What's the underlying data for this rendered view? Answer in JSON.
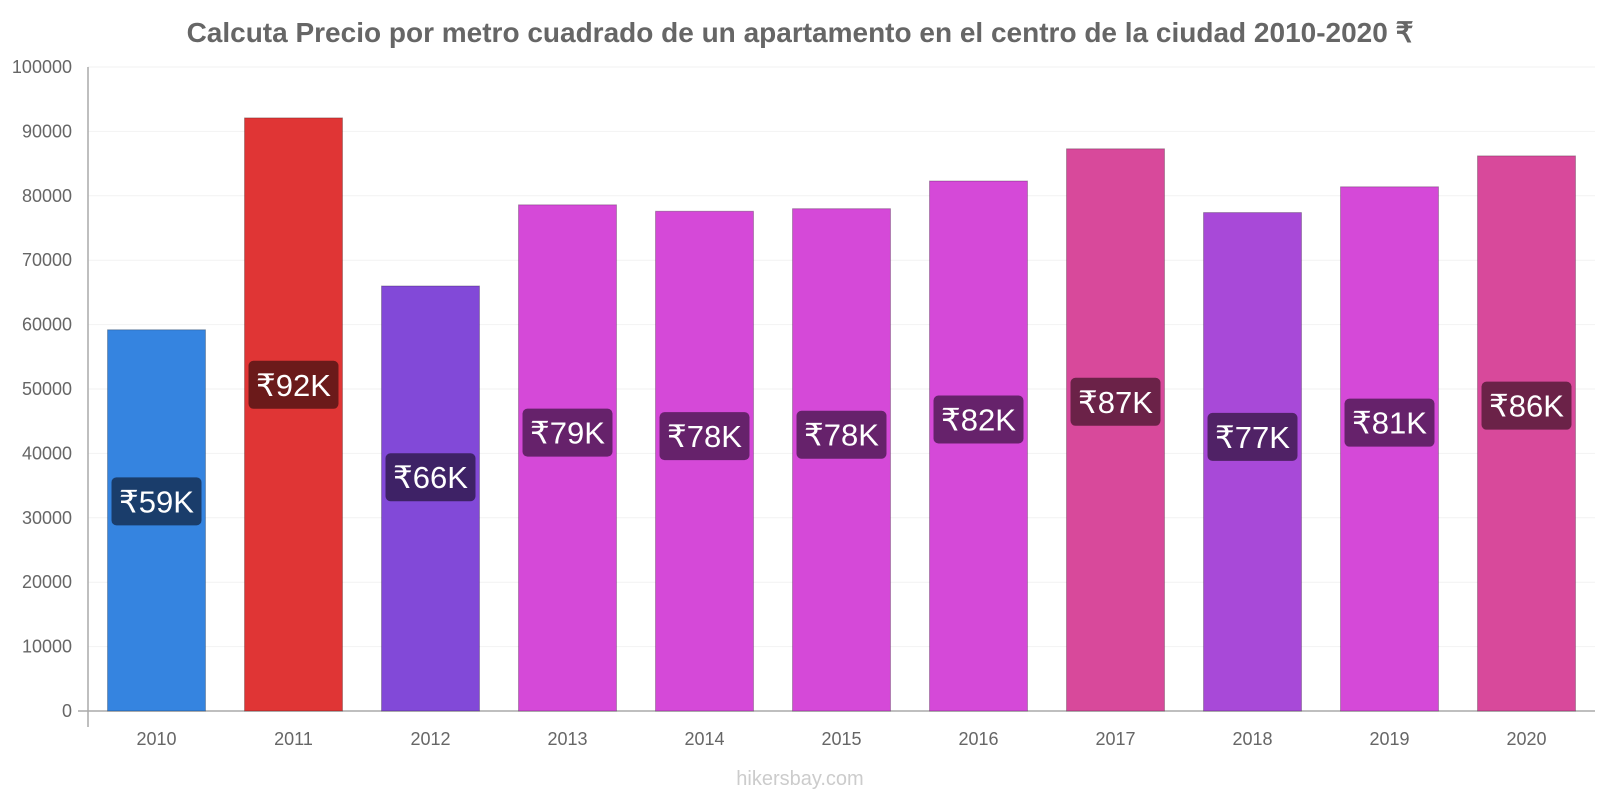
{
  "chart_data": {
    "type": "bar",
    "title": "Calcuta Precio por metro cuadrado de un apartamento en el centro de la ciudad 2010-2020 ₹",
    "xlabel": "",
    "ylabel": "",
    "ylim": [
      0,
      100000
    ],
    "yticks": [
      "0",
      "10000",
      "20000",
      "30000",
      "40000",
      "50000",
      "60000",
      "70000",
      "80000",
      "90000",
      "100000"
    ],
    "categories": [
      "2010",
      "2011",
      "2012",
      "2013",
      "2014",
      "2015",
      "2016",
      "2017",
      "2018",
      "2019",
      "2020"
    ],
    "values": [
      59200,
      92100,
      66000,
      78600,
      77600,
      78000,
      82300,
      87300,
      77400,
      81400,
      86200
    ],
    "data_labels": [
      "₹59K",
      "₹92K",
      "₹66K",
      "₹79K",
      "₹78K",
      "₹78K",
      "₹82K",
      "₹87K",
      "₹77K",
      "₹81K",
      "₹86K"
    ],
    "bar_colors": [
      "#3584e0",
      "#e03535",
      "#8249d8",
      "#d549d8",
      "#d549d8",
      "#d549d8",
      "#d549d8",
      "#d8499b",
      "#a849d8",
      "#d549d8",
      "#d8499b"
    ],
    "label_colors": [
      "#1a3d6b",
      "#6b1a1a",
      "#3e2266",
      "#66226b",
      "#66226b",
      "#66226b",
      "#66226b",
      "#6b2248",
      "#502266",
      "#66226b",
      "#6b2248"
    ],
    "grid": true
  },
  "watermark": "hikersbay.com"
}
